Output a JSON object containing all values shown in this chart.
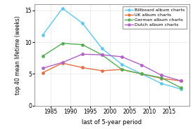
{
  "x": [
    1983,
    1988,
    1993,
    1998,
    2003,
    2008,
    2013,
    2018
  ],
  "billboard": [
    11.1,
    15.3,
    13.0,
    9.0,
    6.5,
    5.0,
    3.5,
    2.6
  ],
  "uk": [
    5.2,
    6.7,
    6.0,
    5.5,
    5.7,
    5.0,
    4.3,
    3.9
  ],
  "german": [
    7.8,
    9.8,
    9.6,
    8.0,
    5.7,
    5.0,
    4.4,
    2.8
  ],
  "dutch": [
    5.9,
    6.8,
    8.1,
    8.0,
    7.7,
    6.4,
    4.8,
    3.9
  ],
  "colors": {
    "billboard": "#5bc8f0",
    "uk": "#e87040",
    "german": "#50b050",
    "dutch": "#b060c8"
  },
  "labels": {
    "billboard": "Billboard album charts",
    "uk": "UK album charts",
    "german": "German album charts",
    "dutch": "Dutch album charts"
  },
  "xlabel": "last of 5-year period",
  "ylabel": "top 40 mean lifetime (weeks)",
  "ylim": [
    0,
    16
  ],
  "xlim": [
    1981,
    2020
  ],
  "xticks": [
    1985,
    1990,
    1995,
    2000,
    2005,
    2010,
    2015
  ],
  "yticks": [
    0,
    5,
    10,
    15
  ],
  "grid_color": "#e0e0e0"
}
